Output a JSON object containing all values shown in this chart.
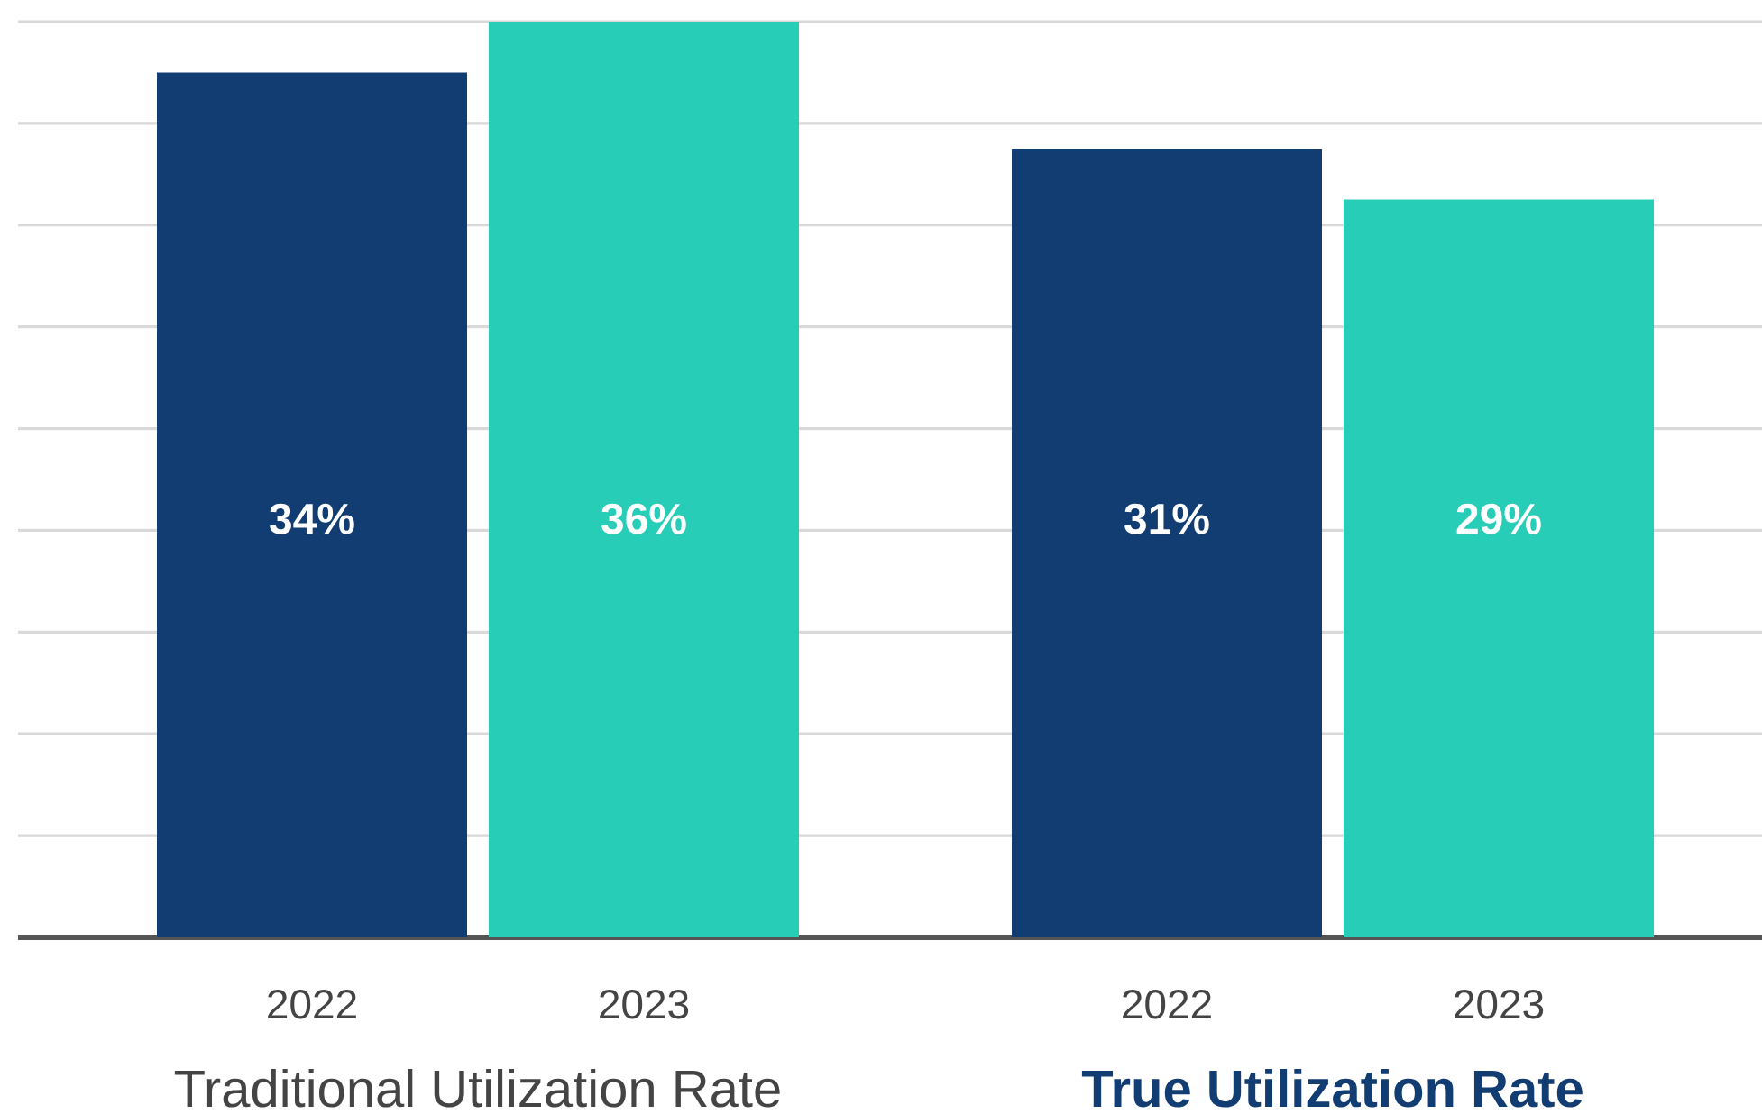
{
  "chart_data": {
    "type": "bar",
    "categories": [
      "Traditional Utilization Rate",
      "True Utilization Rate"
    ],
    "series": [
      {
        "name": "2022",
        "color": "#123d73",
        "values": [
          34,
          31
        ],
        "value_labels": [
          "34%",
          "31%"
        ]
      },
      {
        "name": "2023",
        "color": "#27cdb6",
        "values": [
          36,
          29
        ],
        "value_labels": [
          "36%",
          "29%"
        ]
      }
    ],
    "ylim": [
      0,
      36
    ],
    "yticks": [
      {
        "value": 4,
        "label": null
      },
      {
        "value": 8,
        "label": null
      },
      {
        "value": 12,
        "label": null
      },
      {
        "value": 16,
        "label": null
      },
      {
        "value": 20,
        "label": null
      },
      {
        "value": 24,
        "label": null
      },
      {
        "value": 28,
        "label": null
      },
      {
        "value": 32,
        "label": null
      },
      {
        "value": 36,
        "label": null
      }
    ],
    "grid": "y",
    "tick_labels": "x"
  }
}
